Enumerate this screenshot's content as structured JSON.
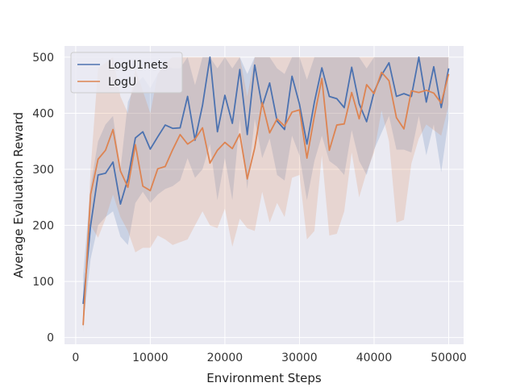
{
  "chart_data": {
    "type": "line",
    "title": "",
    "xlabel": "Environment Steps",
    "ylabel": "Average Evaluation Reward",
    "xlim": [
      -1500,
      52000
    ],
    "ylim": [
      -12,
      520
    ],
    "xticks": [
      0,
      10000,
      20000,
      30000,
      40000,
      50000
    ],
    "xtick_labels": [
      "0",
      "10000",
      "20000",
      "30000",
      "40000",
      "50000"
    ],
    "yticks": [
      0,
      100,
      200,
      300,
      400,
      500
    ],
    "ytick_labels": [
      "0",
      "100",
      "200",
      "300",
      "400",
      "500"
    ],
    "grid": true,
    "legend": "top-left",
    "x": [
      1000,
      2000,
      3000,
      4000,
      5000,
      6000,
      7000,
      8000,
      9000,
      10000,
      11000,
      12000,
      13000,
      14000,
      15000,
      16000,
      17000,
      18000,
      19000,
      20000,
      21000,
      22000,
      23000,
      24000,
      25000,
      26000,
      27000,
      28000,
      29000,
      30000,
      31000,
      32000,
      33000,
      34000,
      35000,
      36000,
      37000,
      38000,
      39000,
      40000,
      41000,
      42000,
      43000,
      44000,
      45000,
      46000,
      47000,
      48000,
      49000,
      50000
    ],
    "series": [
      {
        "name": "LogU1nets",
        "color": "#4c72b0",
        "values": [
          60,
          200,
          290,
          293,
          313,
          238,
          283,
          356,
          367,
          336,
          358,
          379,
          373,
          374,
          430,
          352,
          414,
          500,
          367,
          432,
          382,
          478,
          362,
          486,
          412,
          454,
          386,
          371,
          466,
          416,
          345,
          420,
          481,
          430,
          426,
          410,
          482,
          417,
          385,
          438,
          468,
          490,
          430,
          435,
          430,
          500,
          420,
          483,
          410,
          480
        ],
        "lower": [
          20,
          140,
          200,
          215,
          225,
          180,
          165,
          240,
          260,
          240,
          255,
          265,
          270,
          280,
          320,
          285,
          300,
          345,
          245,
          320,
          245,
          390,
          265,
          390,
          320,
          355,
          290,
          280,
          360,
          325,
          245,
          315,
          360,
          315,
          305,
          290,
          370,
          315,
          290,
          335,
          365,
          395,
          335,
          335,
          330,
          395,
          325,
          380,
          295,
          390
        ],
        "upper": [
          110,
          270,
          350,
          380,
          395,
          300,
          420,
          450,
          465,
          445,
          470,
          485,
          480,
          480,
          500,
          450,
          500,
          500,
          480,
          500,
          480,
          500,
          470,
          500,
          500,
          500,
          480,
          470,
          500,
          500,
          460,
          500,
          500,
          500,
          500,
          500,
          500,
          500,
          480,
          500,
          500,
          500,
          500,
          500,
          500,
          500,
          500,
          500,
          500,
          500
        ]
      },
      {
        "name": "LogU",
        "color": "#dd8452",
        "values": [
          22,
          255,
          318,
          334,
          371,
          297,
          268,
          344,
          270,
          262,
          301,
          305,
          335,
          362,
          345,
          354,
          374,
          311,
          334,
          348,
          337,
          363,
          283,
          338,
          419,
          365,
          390,
          377,
          402,
          406,
          320,
          395,
          462,
          334,
          379,
          381,
          437,
          390,
          451,
          435,
          473,
          458,
          392,
          372,
          440,
          437,
          441,
          436,
          418,
          470
        ],
        "lower": [
          10,
          200,
          178,
          212,
          255,
          215,
          190,
          152,
          160,
          160,
          182,
          175,
          165,
          170,
          175,
          200,
          225,
          200,
          195,
          230,
          162,
          212,
          195,
          190,
          260,
          205,
          240,
          215,
          285,
          290,
          175,
          190,
          325,
          182,
          185,
          225,
          330,
          250,
          295,
          330,
          405,
          350,
          205,
          210,
          310,
          355,
          380,
          370,
          360,
          415
        ],
        "upper": [
          40,
          300,
          480,
          490,
          500,
          430,
          400,
          480,
          440,
          400,
          470,
          490,
          500,
          500,
          500,
          500,
          500,
          500,
          500,
          500,
          500,
          500,
          430,
          500,
          500,
          500,
          500,
          500,
          500,
          500,
          500,
          500,
          500,
          500,
          500,
          500,
          500,
          500,
          500,
          500,
          500,
          500,
          500,
          500,
          500,
          500,
          500,
          500,
          500,
          500
        ]
      }
    ]
  }
}
